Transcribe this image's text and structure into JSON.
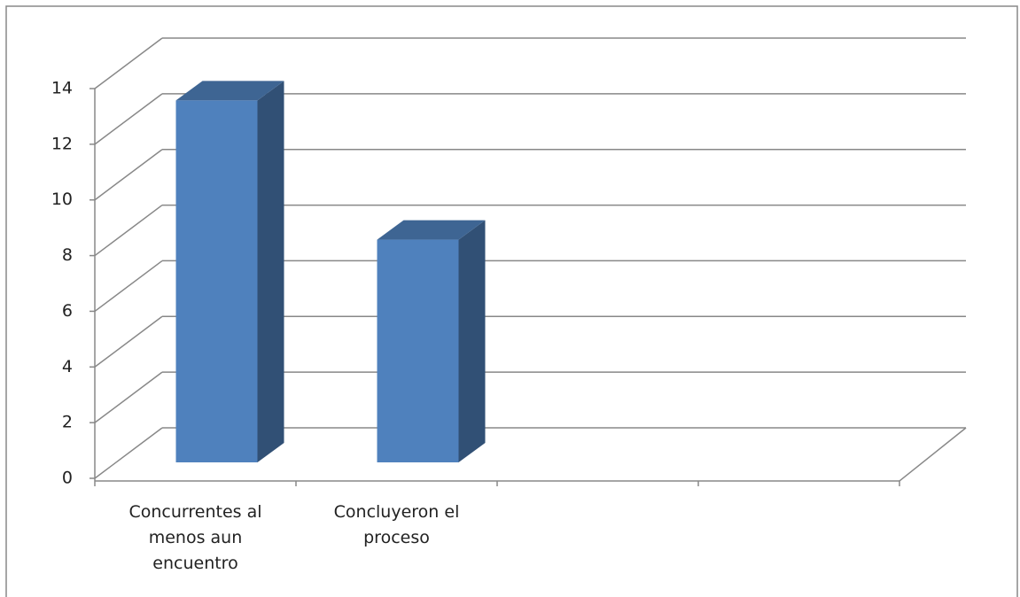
{
  "chart_data": {
    "type": "bar3d",
    "categories": [
      "Concurrentes al menos aun encuentro",
      "Concluyeron el proceso",
      null,
      null
    ],
    "values": [
      13,
      8,
      null,
      null
    ],
    "color": "#4f81bd",
    "ylim": [
      0,
      14
    ],
    "yticks": [
      0,
      2,
      4,
      6,
      8,
      10,
      12,
      14
    ],
    "grid": true
  }
}
